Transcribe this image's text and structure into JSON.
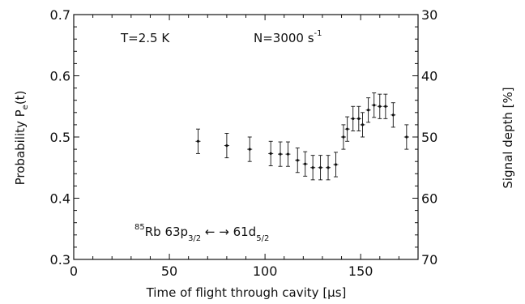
{
  "chart_data": {
    "type": "scatter",
    "title": "",
    "xlabel": "Time of flight through cavity [µs]",
    "ylabel_left": "Probability P_e(t)",
    "ylabel_right": "Signal depth [%]",
    "xlim": [
      0,
      180
    ],
    "ylim": [
      0.3,
      0.7
    ],
    "y2lim": [
      70,
      30
    ],
    "x_ticks": [
      0,
      50,
      100,
      150
    ],
    "y_ticks": [
      "0.3",
      "0.4",
      "0.5",
      "0.6",
      "0.7"
    ],
    "y2_ticks": [
      "70",
      "60",
      "50",
      "40",
      "30"
    ],
    "grid": false,
    "error_bars": true,
    "annotations": {
      "temperature": "T=2.5 K",
      "rate": "N=3000 s⁻¹",
      "transition": "⁸⁵Rb 63p3/2 ↔ 61d5/2"
    },
    "series": [
      {
        "x": [
          65,
          80,
          92,
          103,
          108,
          112,
          117,
          121,
          125,
          129,
          133,
          137,
          141,
          143,
          146,
          149,
          151,
          154,
          157,
          160,
          163,
          167,
          174
        ],
        "y": [
          0.493,
          0.486,
          0.48,
          0.473,
          0.472,
          0.472,
          0.462,
          0.456,
          0.45,
          0.45,
          0.45,
          0.455,
          0.5,
          0.513,
          0.53,
          0.53,
          0.52,
          0.544,
          0.552,
          0.55,
          0.55,
          0.536,
          0.5
        ],
        "yerr": [
          0.02,
          0.02,
          0.02,
          0.02,
          0.02,
          0.02,
          0.02,
          0.02,
          0.02,
          0.02,
          0.02,
          0.02,
          0.02,
          0.02,
          0.02,
          0.02,
          0.02,
          0.02,
          0.02,
          0.02,
          0.02,
          0.02,
          0.02
        ]
      }
    ]
  }
}
